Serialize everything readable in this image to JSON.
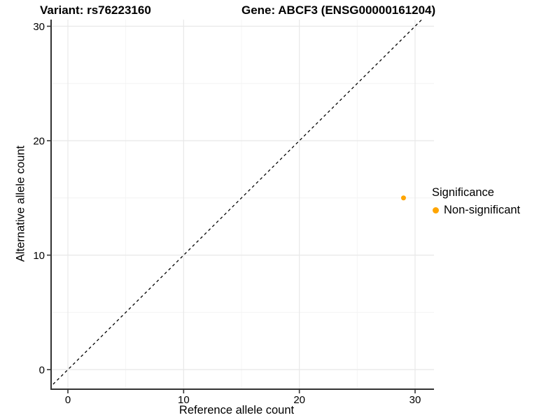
{
  "title": {
    "variant": "Variant: rs76223160",
    "gene": "Gene: ABCF3 (ENSG00000161204)"
  },
  "axes": {
    "x_label": "Reference allele count",
    "y_label": "Alternative allele count"
  },
  "legend": {
    "title": "Significance",
    "items": [
      {
        "label": "Non-significant",
        "color": "#FFA500",
        "marker": "circle-icon"
      }
    ]
  },
  "colors": {
    "point": "#FFA500",
    "axis_line": "#333333",
    "tick_mark": "#333333",
    "grid_major": "#E8E8E8",
    "grid_minor": "#F4F4F4",
    "reference_line": "#000000",
    "background": "#FFFFFF",
    "text": "#000000"
  },
  "chart_data": {
    "type": "scatter",
    "title": "Variant: rs76223160    Gene: ABCF3 (ENSG00000161204)",
    "xlabel": "Reference allele count",
    "ylabel": "Alternative allele count",
    "xlim": [
      0,
      30
    ],
    "ylim": [
      0,
      30
    ],
    "x_ticks": [
      0,
      10,
      20,
      30
    ],
    "y_ticks": [
      0,
      10,
      20,
      30
    ],
    "x_minor_ticks": [
      5,
      15,
      25
    ],
    "y_minor_ticks": [
      5,
      15,
      25
    ],
    "grid": true,
    "legend_position": "right",
    "reference_line": {
      "kind": "identity",
      "equation": "y = x",
      "style": "dashed",
      "color": "#000000"
    },
    "series": [
      {
        "name": "Non-significant",
        "color": "#FFA500",
        "points": [
          {
            "x": 29,
            "y": 15
          }
        ]
      }
    ]
  }
}
